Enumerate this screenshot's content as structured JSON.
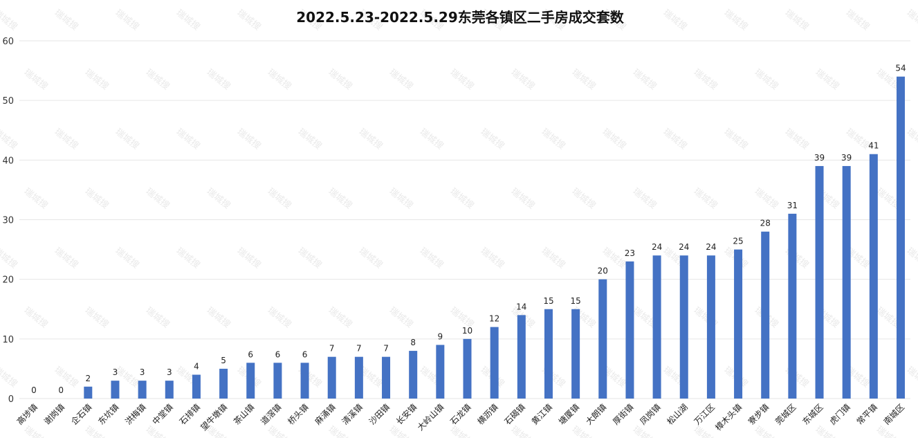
{
  "chart_data": {
    "type": "bar",
    "title": "2022.5.23-2022.5.29东莞各镇区二手房成交套数",
    "xlabel": "",
    "ylabel": "",
    "ylim": [
      0,
      60
    ],
    "yticks": [
      0,
      10,
      20,
      30,
      40,
      50,
      60
    ],
    "grid": true,
    "legend": "none",
    "bar_color": "#4472C4",
    "categories": [
      "高埗镇",
      "谢岗镇",
      "企石镇",
      "东坑镇",
      "洪梅镇",
      "中堂镇",
      "石排镇",
      "望牛墩镇",
      "茶山镇",
      "道滘镇",
      "桥头镇",
      "麻涌镇",
      "清溪镇",
      "沙田镇",
      "长安镇",
      "大岭山镇",
      "石龙镇",
      "横沥镇",
      "石碣镇",
      "黄江镇",
      "塘厦镇",
      "大朗镇",
      "厚街镇",
      "凤岗镇",
      "松山湖",
      "万江区",
      "樟木头镇",
      "寮步镇",
      "莞城区",
      "东城区",
      "虎门镇",
      "常平镇",
      "南城区"
    ],
    "values": [
      0,
      0,
      2,
      3,
      3,
      3,
      4,
      5,
      6,
      6,
      6,
      7,
      7,
      7,
      8,
      9,
      10,
      12,
      14,
      15,
      15,
      20,
      23,
      24,
      24,
      24,
      25,
      28,
      31,
      39,
      39,
      41,
      54
    ]
  },
  "watermark": {
    "text": "瑞城搜"
  }
}
